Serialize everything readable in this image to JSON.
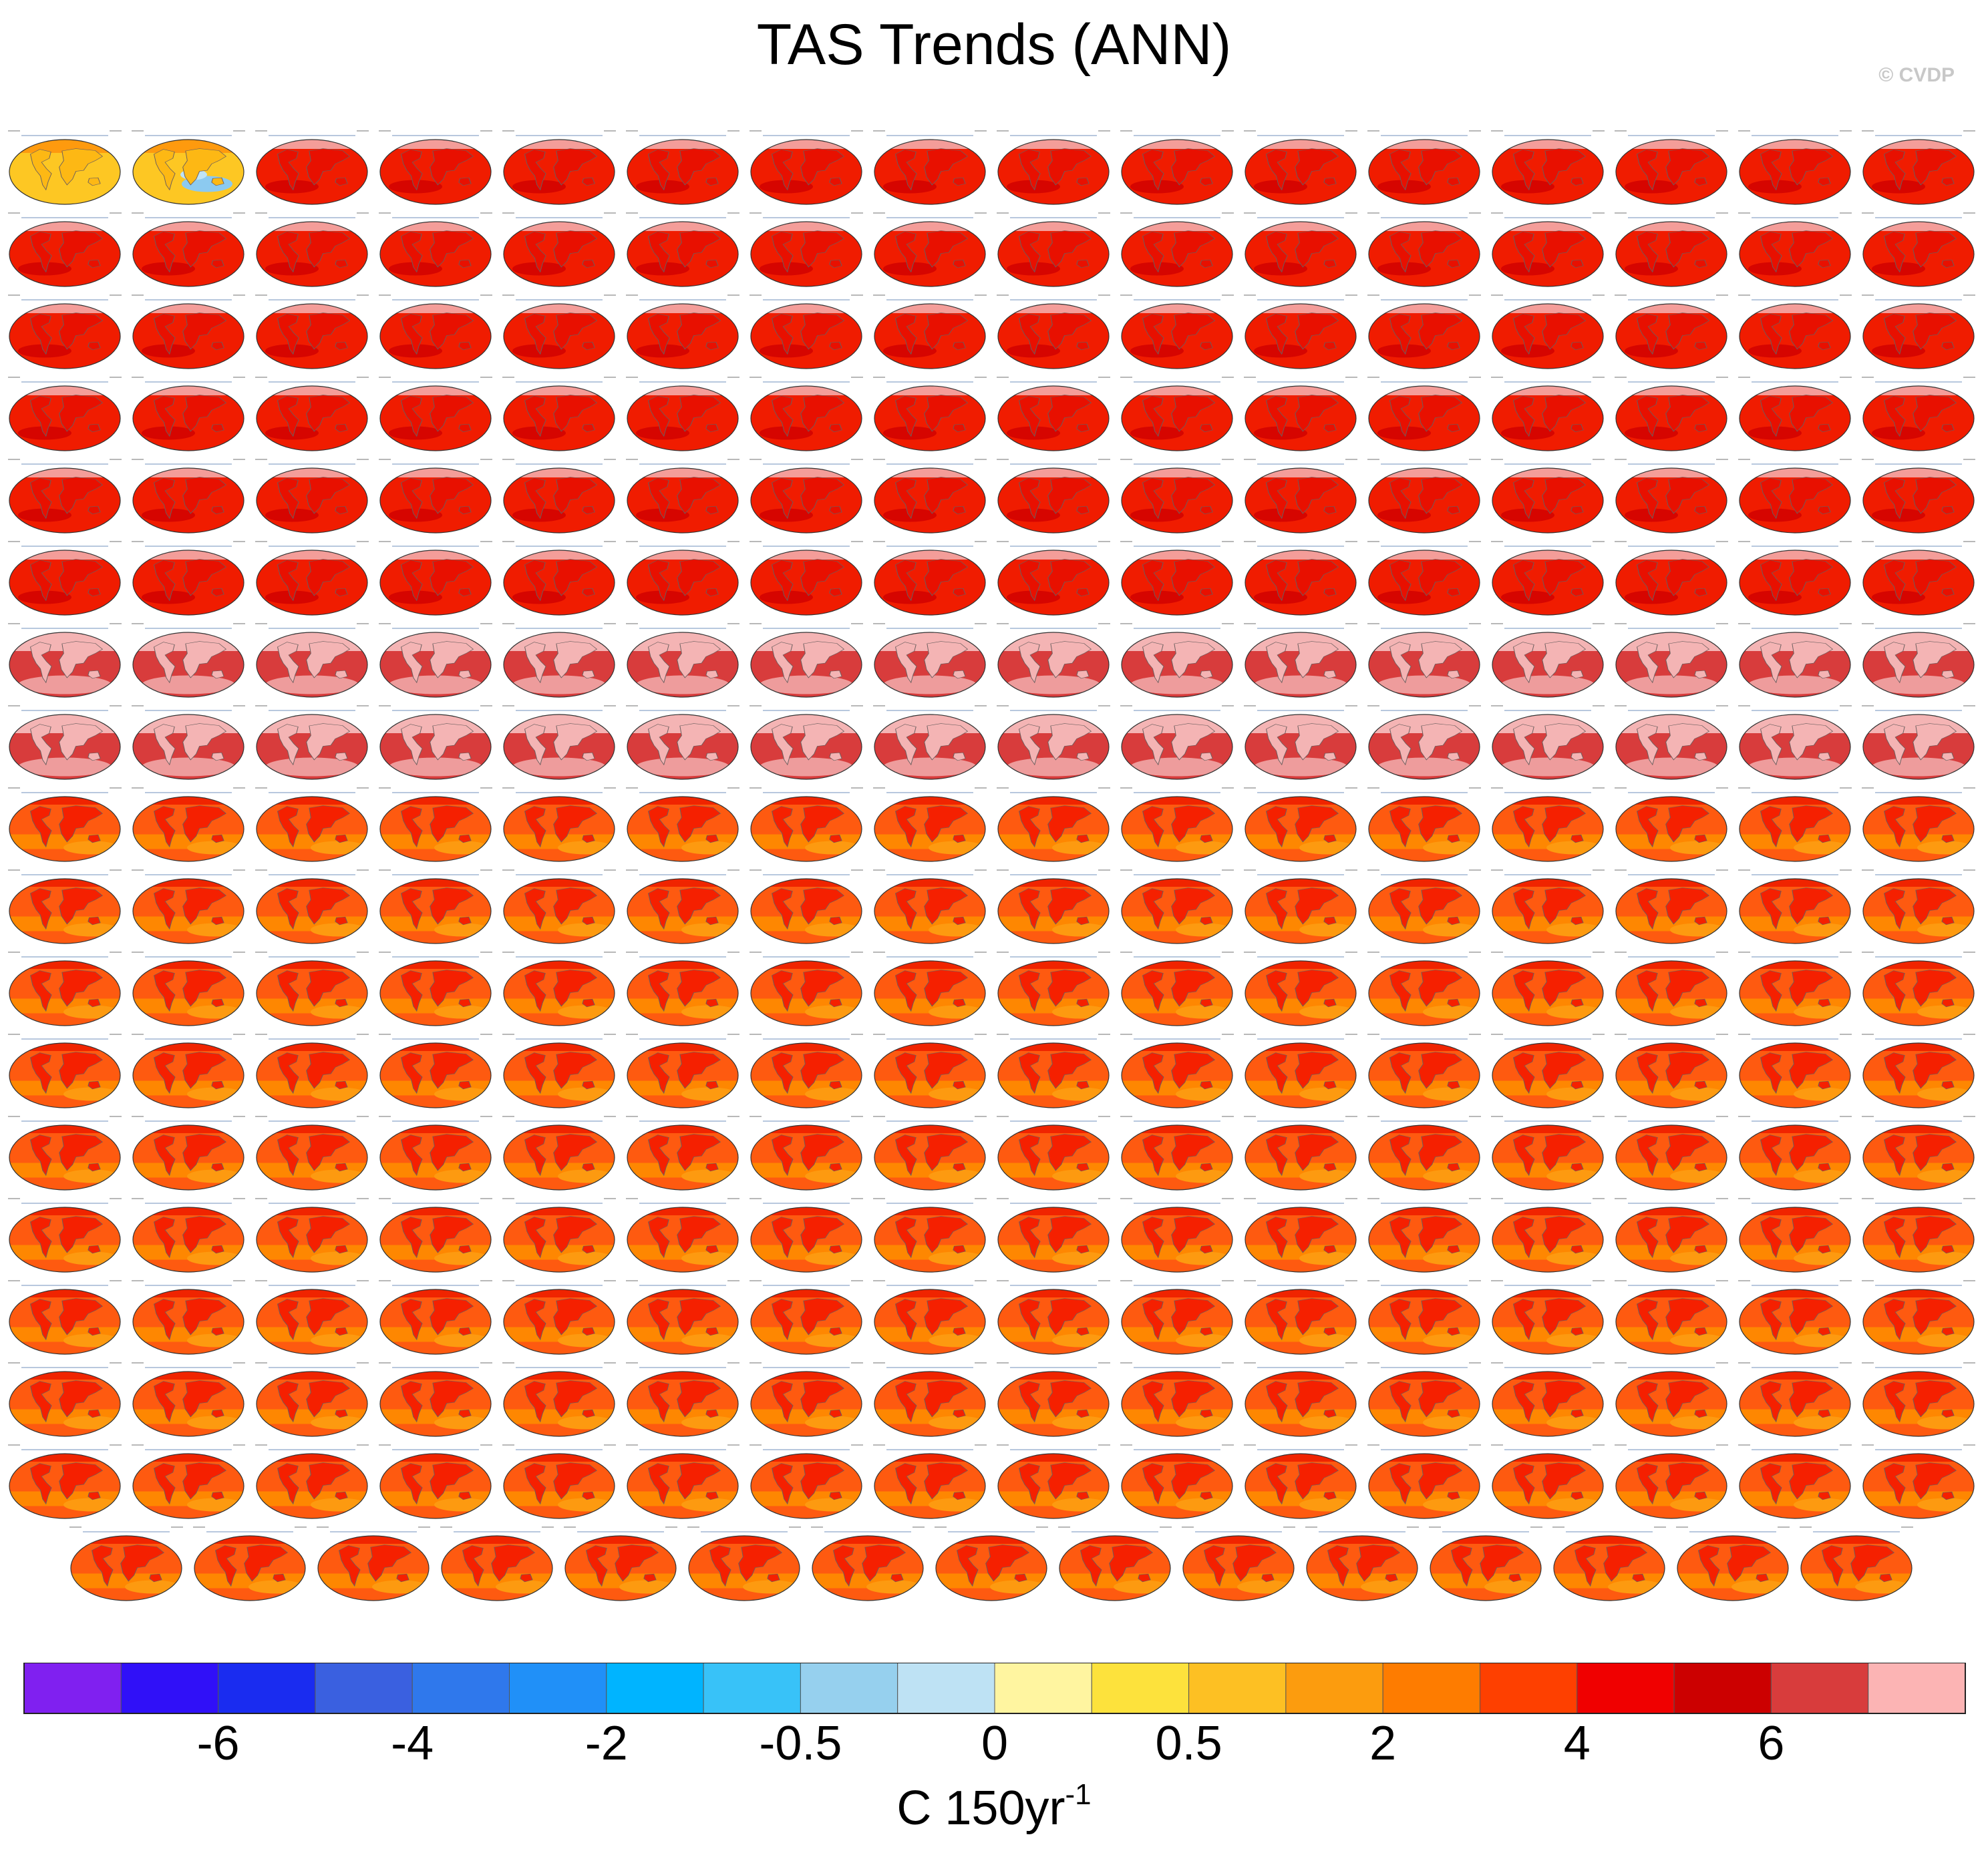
{
  "title": "TAS Trends (ANN)",
  "credit": "© CVDP",
  "colors": {
    "ocean_cmip": "#f01c00",
    "ocean_cmip_dark": "#d00000",
    "land_light": "#f4b4b4",
    "ocean_cesm": "#fe5a10",
    "cesm_patch": "#fe8c00",
    "obs_yellow": "#fdc723",
    "obs_blue": "#8ccaf0",
    "coast": "#6a5e5e"
  },
  "chart_data": {
    "type": "heatmap",
    "description_kind": "small multiples of global trend maps",
    "panel_rows": [
      16,
      16,
      16,
      16,
      16,
      16,
      16,
      16,
      16,
      16,
      16,
      16,
      16,
      16,
      16,
      16,
      16,
      15
    ],
    "panel_styles": {
      "observations": [
        0,
        1
      ],
      "cmip_like_rows": [
        0,
        1,
        2,
        3,
        4,
        5
      ],
      "pale_land_rows": [
        6,
        7
      ],
      "cesm_like_rows": [
        8,
        9,
        10,
        11,
        12,
        13,
        14,
        15,
        16,
        17
      ]
    },
    "colorbar": {
      "label": "C 150yr",
      "label_superscript": "-1",
      "tick_labels": [
        "-6",
        "-4",
        "-2",
        "-0.5",
        "0",
        "0.5",
        "2",
        "4",
        "6"
      ],
      "box_colors": [
        "#8020f0",
        "#3010f8",
        "#1a2cf0",
        "#3a60e0",
        "#2f78ec",
        "#2090f8",
        "#00b4ff",
        "#38c2f8",
        "#96d0ee",
        "#bee2f4",
        "#fff5a0",
        "#fde23c",
        "#fdc023",
        "#fc9c0e",
        "#fe7c00",
        "#fe4000",
        "#f00000",
        "#cc0000",
        "#d83c3c",
        "#fcb4b4"
      ]
    }
  }
}
